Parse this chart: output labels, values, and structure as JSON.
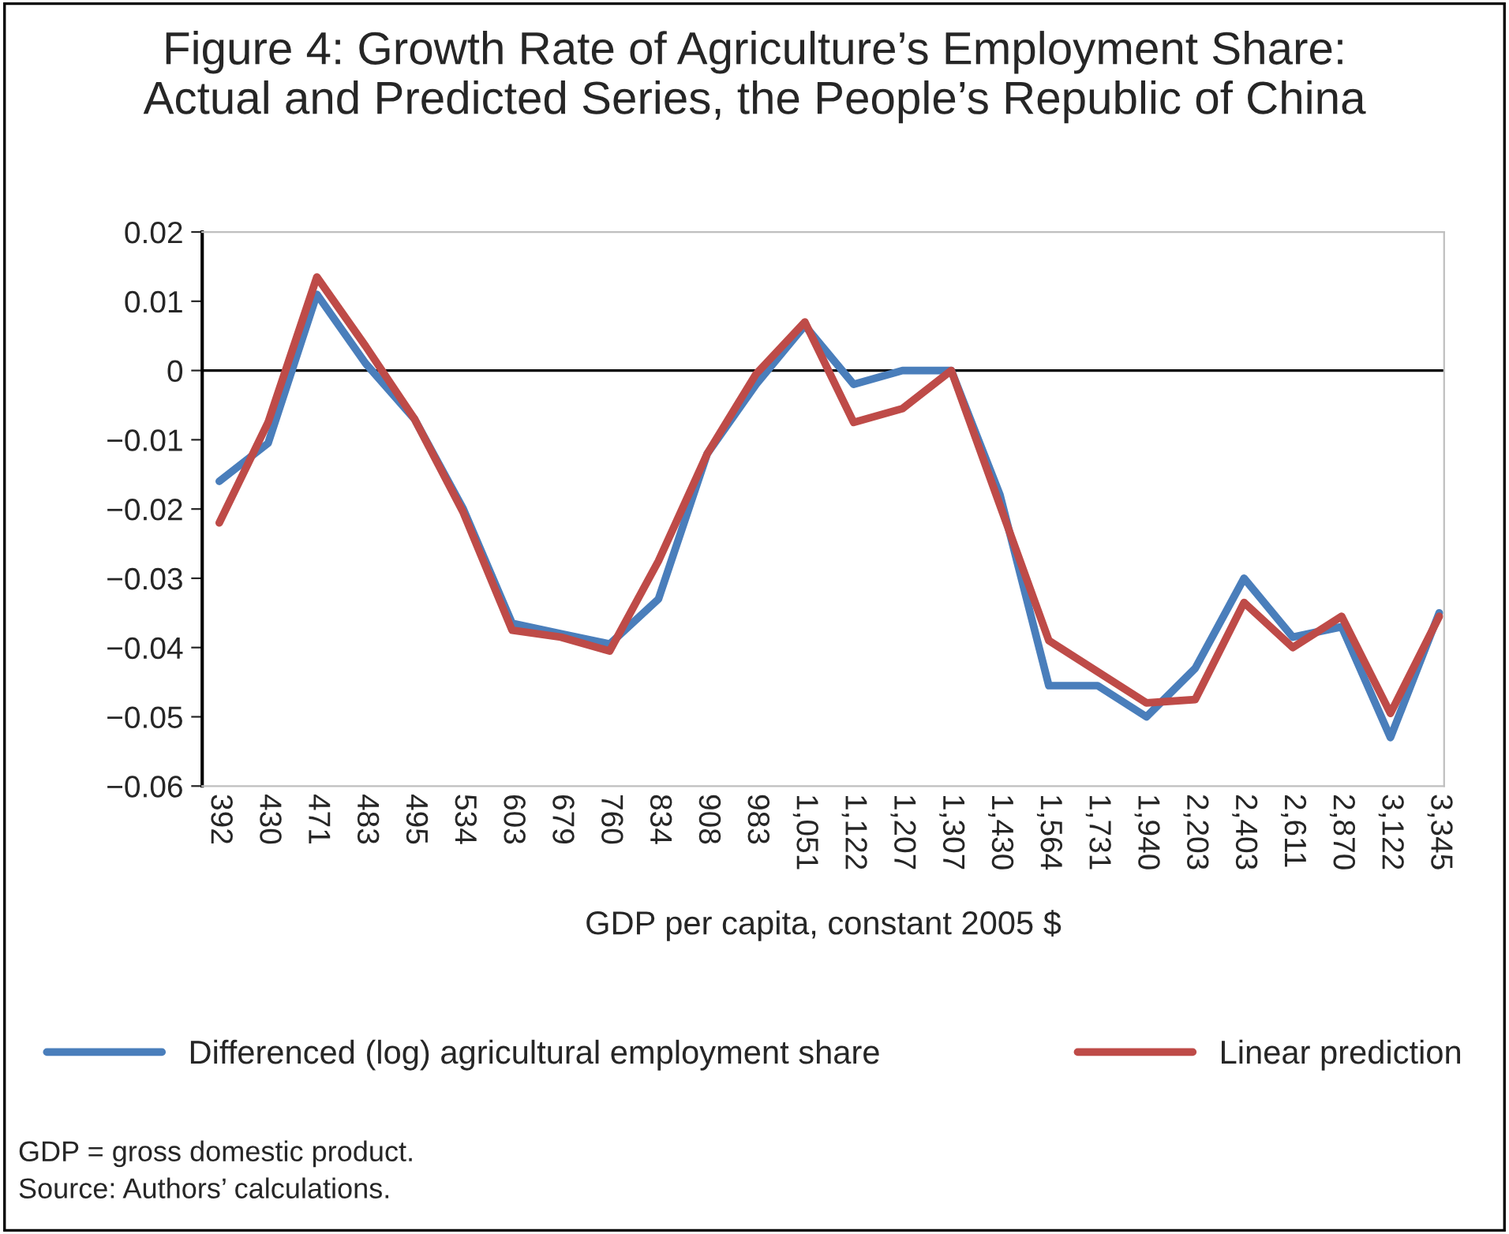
{
  "chart_data": {
    "type": "line",
    "title": "Figure 4: Growth Rate of Agriculture’s Employment Share:\nActual and Predicted Series, the People’s Republic of China",
    "xlabel": "GDP per capita, constant 2005 $",
    "categories": [
      "392",
      "430",
      "471",
      "483",
      "495",
      "534",
      "603",
      "679",
      "760",
      "834",
      "908",
      "983",
      "1,051",
      "1,122",
      "1,207",
      "1,307",
      "1,430",
      "1,564",
      "1,731",
      "1,940",
      "2,203",
      "2,403",
      "2,611",
      "2,870",
      "3,122",
      "3,345"
    ],
    "series": [
      {
        "name": "Differenced (log) agricultural employment share",
        "color": "#4a7ebb",
        "values": [
          -0.016,
          -0.0105,
          0.011,
          0.001,
          -0.007,
          -0.02,
          -0.0365,
          -0.038,
          -0.0395,
          -0.033,
          -0.012,
          -0.002,
          0.0065,
          -0.002,
          0,
          0,
          -0.018,
          -0.0455,
          -0.0455,
          -0.05,
          -0.043,
          -0.03,
          -0.0385,
          -0.037,
          -0.053,
          -0.035
        ]
      },
      {
        "name": "Linear prediction",
        "color": "#be4b48",
        "values": [
          -0.022,
          -0.0075,
          0.0135,
          0.0035,
          -0.007,
          -0.0205,
          -0.0375,
          -0.0385,
          -0.0405,
          -0.0275,
          -0.012,
          -0.0005,
          0.007,
          -0.0075,
          -0.0055,
          0,
          -0.0195,
          -0.039,
          -0.0435,
          -0.048,
          -0.0475,
          -0.0335,
          -0.04,
          -0.0355,
          -0.0495,
          -0.0355
        ]
      }
    ],
    "ylim": [
      -0.06,
      0.02
    ],
    "yticks": [
      {
        "value": -0.06,
        "label": "−0.06"
      },
      {
        "value": -0.05,
        "label": "−0.05"
      },
      {
        "value": -0.04,
        "label": "−0.04"
      },
      {
        "value": -0.03,
        "label": "−0.03"
      },
      {
        "value": -0.02,
        "label": "−0.02"
      },
      {
        "value": -0.01,
        "label": "−0.01"
      },
      {
        "value": 0,
        "label": "0"
      },
      {
        "value": 0.01,
        "label": "0.01"
      },
      {
        "value": 0.02,
        "label": "0.02"
      }
    ],
    "ref_lines": [
      {
        "axis": "y",
        "value": 0,
        "color": "#000000"
      }
    ],
    "grid": false,
    "legend": "bottom",
    "line_style": "solid",
    "marker": "none",
    "annotations": [
      "GDP = gross domestic product.",
      "Source: Authors’ calculations."
    ]
  }
}
